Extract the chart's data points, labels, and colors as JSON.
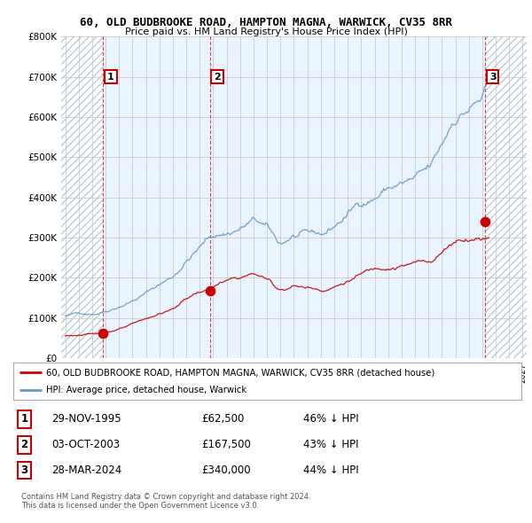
{
  "title": "60, OLD BUDBROOKE ROAD, HAMPTON MAGNA, WARWICK, CV35 8RR",
  "subtitle": "Price paid vs. HM Land Registry's House Price Index (HPI)",
  "ylim": [
    0,
    800000
  ],
  "xlim_start": 1992.7,
  "xlim_end": 2027.3,
  "hatch_left_end": 1995.83,
  "hatch_right_start": 2024.22,
  "sale_points": [
    {
      "date_num": 1995.83,
      "price": 62500,
      "label": "1"
    },
    {
      "date_num": 2003.75,
      "price": 167500,
      "label": "2"
    },
    {
      "date_num": 2024.22,
      "price": 340000,
      "label": "3"
    }
  ],
  "legend_line1": "60, OLD BUDBROOKE ROAD, HAMPTON MAGNA, WARWICK, CV35 8RR (detached house)",
  "legend_line2": "HPI: Average price, detached house, Warwick",
  "table_rows": [
    {
      "num": "1",
      "date": "29-NOV-1995",
      "price": "£62,500",
      "hpi": "46% ↓ HPI"
    },
    {
      "num": "2",
      "date": "03-OCT-2003",
      "price": "£167,500",
      "hpi": "43% ↓ HPI"
    },
    {
      "num": "3",
      "date": "28-MAR-2024",
      "price": "£340,000",
      "hpi": "44% ↓ HPI"
    }
  ],
  "footnote1": "Contains HM Land Registry data © Crown copyright and database right 2024.",
  "footnote2": "This data is licensed under the Open Government Licence v3.0.",
  "line_color_red": "#cc0000",
  "line_color_blue": "#6699cc",
  "shade_color": "#ddeeff",
  "grid_color": "#cccccc",
  "bg_color": "#ffffff"
}
